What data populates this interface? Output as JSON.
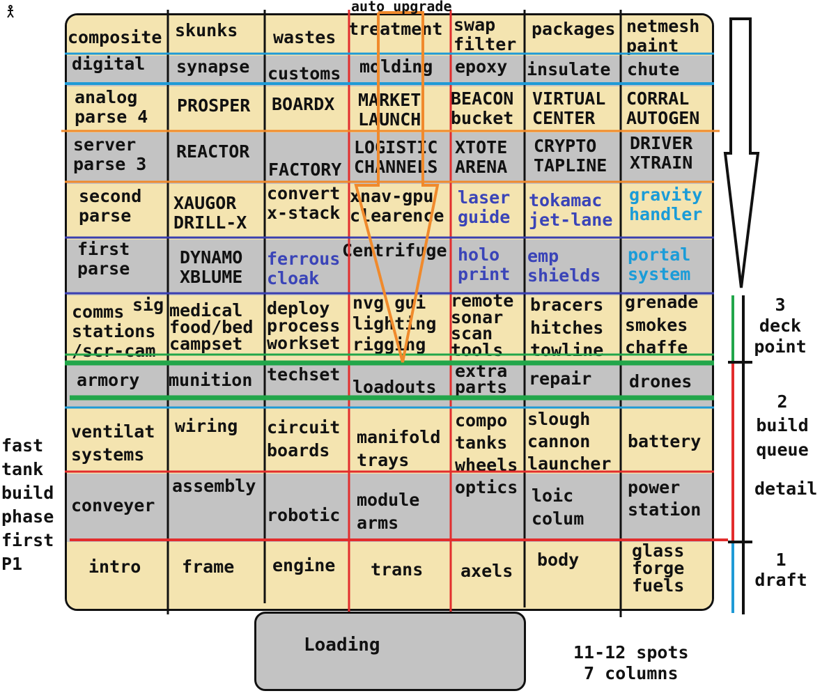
{
  "top_label": "auto upgrade",
  "row_labels": {
    "deck": "3\ndeck\npoint",
    "build": "2\nbuild\nqueue",
    "detail": "detail",
    "draft": "1\ndraft",
    "fast": "fast\ntank\nbuild\nphase\nfirst\nP1"
  },
  "loading": "Loading",
  "footer": "11-12 spots\n 7 columns",
  "cells": [
    [
      "composite",
      "skunks",
      "wastes",
      "treatment",
      "swap\nfilter",
      "packages",
      "netmesh\npaint"
    ],
    [
      "digital",
      "synapse",
      "customs",
      "molding",
      "epoxy",
      "insulate",
      "chute"
    ],
    [
      "analog\nparse 4",
      "PROSPER",
      "BOARDX",
      "MARKET\nLAUNCH",
      "BEACON\nbucket",
      "VIRTUAL\nCENTER",
      "CORRAL\nAUTOGEN"
    ],
    [
      "server\nparse 3",
      "REACTOR",
      "FACTORY",
      "LOGISTIC\nCHANNELS",
      "XTOTE\nARENA",
      "CRYPTO\nTAPLINE",
      "DRIVER\nXTRAIN"
    ],
    [
      "second\nparse",
      "XAUGOR\nDRILL-X",
      "convert\nx-stack",
      "xnav-gpu\nclearence",
      "laser\nguide",
      "tokamac\njet-lane",
      "gravity\nhandler"
    ],
    [
      "first\nparse",
      "DYNAMO\nXBLUME",
      "ferrous\ncloak",
      "Centrifuge",
      "holo\nprint",
      "emp\nshields",
      "portal\nsystem"
    ],
    [
      "comms\nstations\n/scr-cam",
      "medical\nfood/bed\ncampset",
      "deploy\nprocess\nworkset",
      "nvg gui\nlighting\nrigging",
      "remote\nsonar\nscan\ntools",
      "bracers\nhitches\ntowline",
      "grenade\nsmokes\nchaffe"
    ],
    [
      "armory",
      "munition",
      "techset",
      "loadouts",
      "extra\nparts",
      "repair",
      "drones"
    ],
    [
      "ventilat\nsystems",
      "wiring",
      "circuit\nboards",
      "manifold\ntrays",
      "compo\ntanks\nwheels",
      "slough\ncannon\nlauncher",
      "battery"
    ],
    [
      "conveyer",
      "assembly",
      "robotic",
      "module\narms",
      "optics",
      "loic\ncolum",
      "power\nstation"
    ],
    [
      "intro",
      "frame",
      "engine",
      "trans",
      "axels",
      "body",
      "glass\nforge\nfuels"
    ]
  ],
  "sig_label": "sig",
  "colors": {
    "beige": "#f4e4b0",
    "gray": "#c3c3c3",
    "blue_text": "#3a44b8",
    "cyan_text": "#1a9cd8",
    "orange_line": "#f08a2c",
    "blue_line": "#1f9ad6",
    "navy_line": "#3a3fb0",
    "green_line": "#22a64a",
    "red_line": "#e22d2d"
  }
}
